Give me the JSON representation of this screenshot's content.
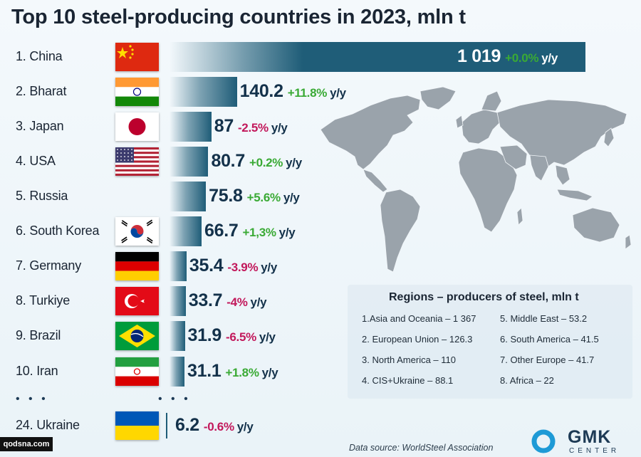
{
  "chart_data": {
    "type": "bar",
    "orientation": "horizontal",
    "title": "Top 10 steel-producing countries in 2023, mln t",
    "unit": "mln t",
    "rows": [
      {
        "rank_label": "1. China",
        "flag": "china-flag",
        "value": 1019,
        "value_label": "1 019",
        "change": "+0.0%",
        "change_dir": "up"
      },
      {
        "rank_label": "2. Bharat",
        "flag": "india-flag",
        "value": 140.2,
        "value_label": "140.2",
        "change": "+11.8%",
        "change_dir": "up"
      },
      {
        "rank_label": "3. Japan",
        "flag": "japan-flag",
        "value": 87,
        "value_label": "87",
        "change": "-2.5%",
        "change_dir": "down"
      },
      {
        "rank_label": "4. USA",
        "flag": "usa-flag",
        "value": 80.7,
        "value_label": "80.7",
        "change": "+0.2%",
        "change_dir": "up"
      },
      {
        "rank_label": "5. Russia",
        "flag": "none",
        "value": 75.8,
        "value_label": "75.8",
        "change": "+5.6%",
        "change_dir": "up"
      },
      {
        "rank_label": "6. South Korea",
        "flag": "south-korea-flag",
        "value": 66.7,
        "value_label": "66.7",
        "change": "+1,3%",
        "change_dir": "up"
      },
      {
        "rank_label": "7. Germany",
        "flag": "germany-flag",
        "value": 35.4,
        "value_label": "35.4",
        "change": "-3.9%",
        "change_dir": "down"
      },
      {
        "rank_label": "8. Turkiye",
        "flag": "turkey-flag",
        "value": 33.7,
        "value_label": "33.7",
        "change": "-4%",
        "change_dir": "down"
      },
      {
        "rank_label": "9. Brazil",
        "flag": "brazil-flag",
        "value": 31.9,
        "value_label": "31.9",
        "change": "-6.5%",
        "change_dir": "down"
      },
      {
        "rank_label": "10. Iran",
        "flag": "iran-flag",
        "value": 31.1,
        "value_label": "31.1",
        "change": "+1.8%",
        "change_dir": "up"
      },
      {
        "rank_label": "24. Ukraine",
        "flag": "ukraine-flag",
        "value": 6.2,
        "value_label": "6.2",
        "change": "-0.6%",
        "change_dir": "down"
      }
    ],
    "suffix": "y/y",
    "ellipsis": "• • •"
  },
  "colors": {
    "bar": "#1f5d78",
    "up": "#3aaa35",
    "down": "#c2185b",
    "text": "#13314a"
  },
  "regions": {
    "title": "Regions  – producers of steel, mln t",
    "items": [
      "1.Asia and Oceania – 1 367",
      "2. European Union – 126.3",
      "3. North America – 110",
      "4. CIS+Ukraine – 88.1",
      "5. Middle East – 53.2",
      "6. South America – 41.5",
      "7. Other Europe – 41.7",
      "8. Africa – 22"
    ]
  },
  "source": "Data source: WorldSteel Association",
  "logo": {
    "name": "GMK",
    "sub": "CENTER",
    "icon": "gmk-ring-logo"
  },
  "watermark": "qodsna.com"
}
